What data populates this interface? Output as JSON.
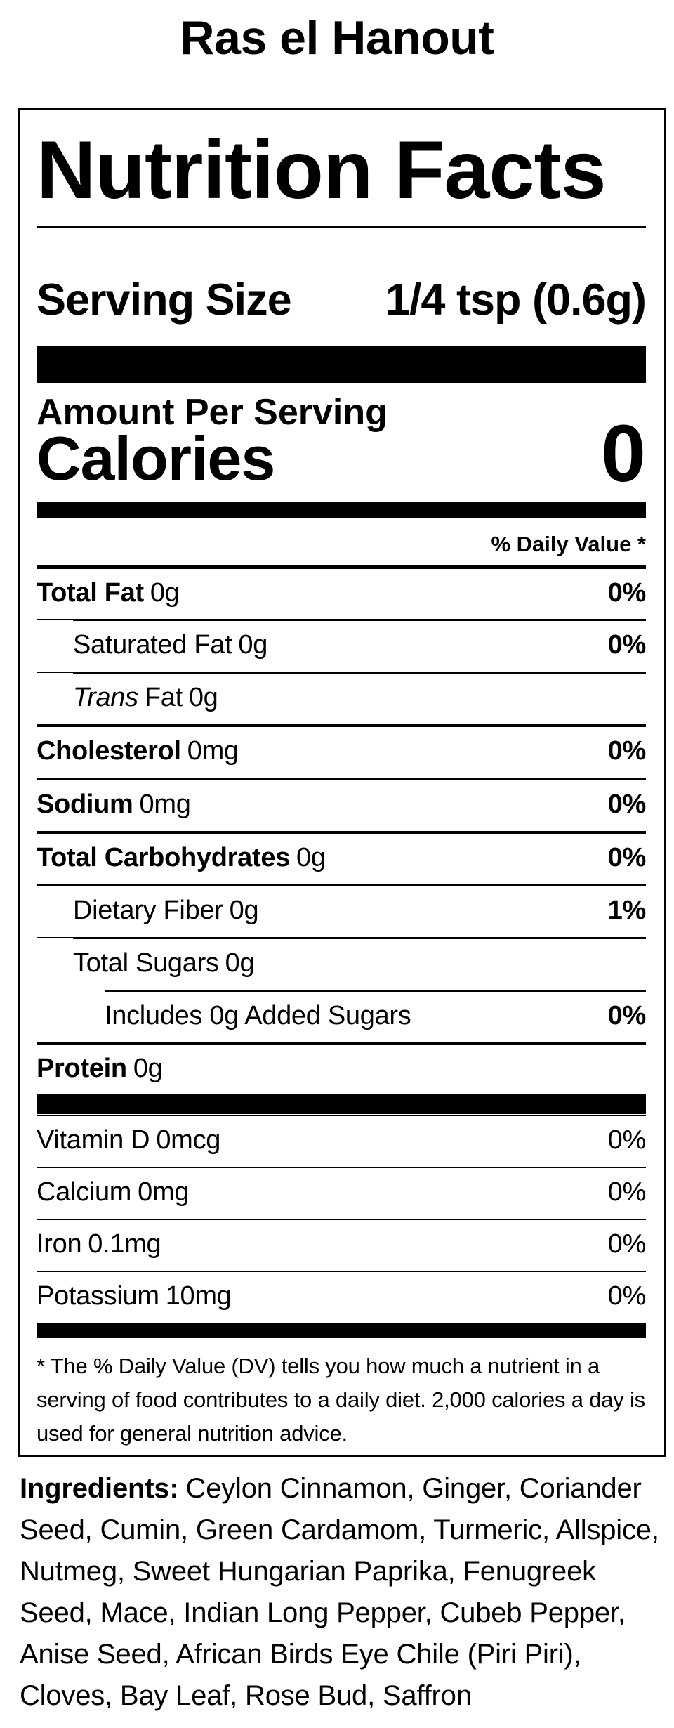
{
  "page": {
    "background": "#ffffff",
    "text_color": "#000000",
    "title": "Ras el Hanout"
  },
  "label": {
    "heading": "Nutrition Facts",
    "serving": {
      "label": "Serving Size",
      "value": "1/4 tsp (0.6g)"
    },
    "amount_per_serving": "Amount Per Serving",
    "calories": {
      "label": "Calories",
      "value": "0"
    },
    "daily_value_header": "% Daily Value *",
    "rows": [
      {
        "name": "Total Fat",
        "amount": "0g",
        "dv": "0%"
      },
      {
        "name": "Saturated Fat",
        "amount": "0g",
        "dv": "0%"
      },
      {
        "name_italic": "Trans",
        "name": "Fat",
        "amount": "0g",
        "dv": ""
      },
      {
        "name": "Cholesterol",
        "amount": "0mg",
        "dv": "0%"
      },
      {
        "name": "Sodium",
        "amount": "0mg",
        "dv": "0%"
      },
      {
        "name": "Total Carbohydrates",
        "amount": "0g",
        "dv": "0%"
      },
      {
        "name": "Dietary Fiber",
        "amount": "0g",
        "dv": "1%"
      },
      {
        "name": "Total Sugars",
        "amount": "0g",
        "dv": ""
      },
      {
        "name": "Includes 0g Added Sugars",
        "amount": "",
        "dv": "0%"
      },
      {
        "name": "Protein",
        "amount": "0g",
        "dv": ""
      }
    ],
    "vitamins": [
      {
        "name": "Vitamin D",
        "amount": "0mcg",
        "dv": "0%"
      },
      {
        "name": "Calcium",
        "amount": "0mg",
        "dv": "0%"
      },
      {
        "name": "Iron",
        "amount": "0.1mg",
        "dv": "0%"
      },
      {
        "name": "Potassium",
        "amount": "10mg",
        "dv": "0%"
      }
    ],
    "footnote": "* The % Daily Value (DV) tells you how much a nutrient in a serving of food contributes to a daily diet. 2,000 calories a day is used for general nutrition advice."
  },
  "ingredients": {
    "label": "Ingredients:",
    "text": "Ceylon Cinnamon, Ginger, Coriander Seed, Cumin, Green Cardamom, Turmeric, Allspice, Nutmeg, Sweet Hungarian Paprika, Fenugreek Seed, Mace, Indian Long Pepper, Cubeb Pepper, Anise Seed, African Birds Eye Chile (Piri Piri), Cloves, Bay Leaf, Rose Bud, Saffron"
  }
}
